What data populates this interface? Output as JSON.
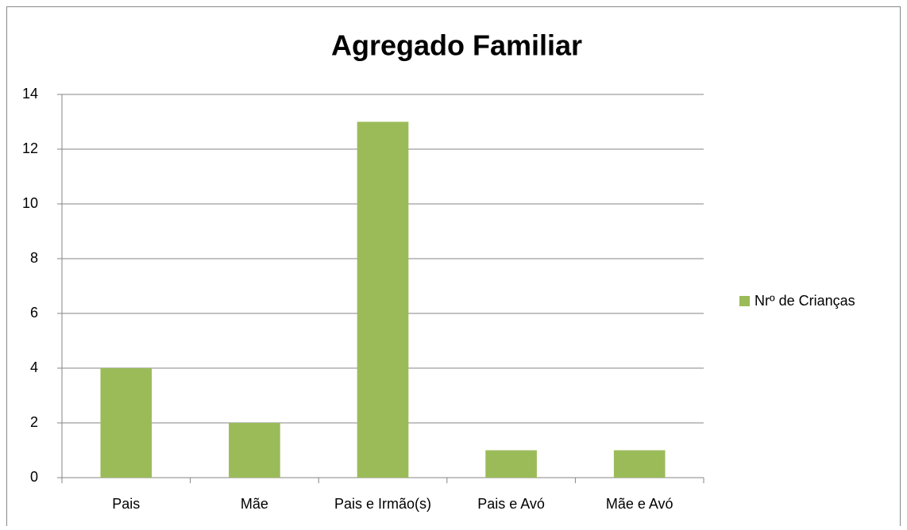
{
  "chart_data": {
    "type": "bar",
    "title": "Agregado Familiar",
    "categories": [
      "Pais",
      "Mãe",
      "Pais e Irmão(s)",
      "Pais e Avó",
      "Mãe e Avó"
    ],
    "series": [
      {
        "name": "Nrº de Crianças",
        "color": "#9bbb59",
        "values": [
          4,
          2,
          13,
          1,
          1
        ]
      }
    ],
    "ylim": [
      0,
      14
    ],
    "yticks": [
      0,
      2,
      4,
      6,
      8,
      10,
      12,
      14
    ],
    "grid": true,
    "legend": "right"
  }
}
